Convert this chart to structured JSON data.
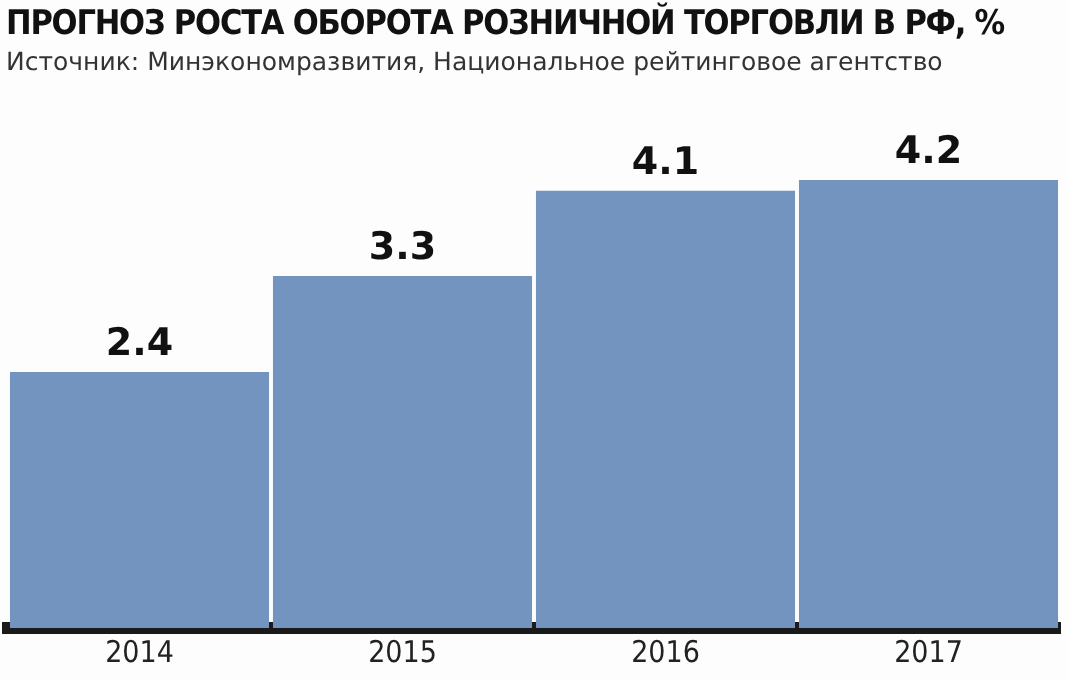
{
  "chart_data": {
    "type": "bar",
    "title": "ПРОГНОЗ РОСТА ОБОРОТА РОЗНИЧНОЙ ТОРГОВЛИ В РФ, %",
    "subtitle": "Источник: Минэкономразвития, Национальное рейтинговое агентство",
    "categories": [
      "2014",
      "2015",
      "2016",
      "2017"
    ],
    "values": [
      2.4,
      3.3,
      4.1,
      4.2
    ],
    "color": "#7394bf",
    "data_labels": true,
    "grid": false,
    "legend": false
  }
}
